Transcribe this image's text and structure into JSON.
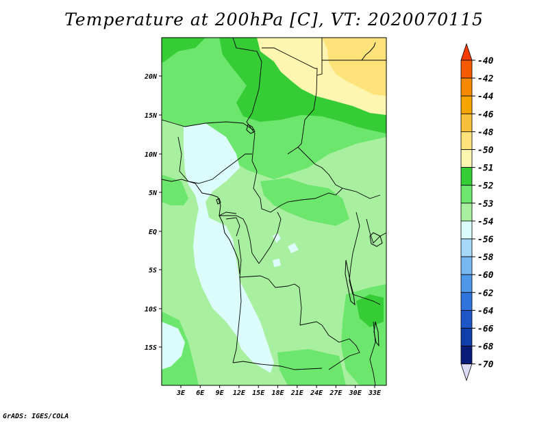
{
  "title": "Temperature at 200hPa [C], VT: 2020070115",
  "credit": "GrADS: IGES/COLA",
  "map": {
    "lat_labels": [
      "20N",
      "15N",
      "10N",
      "5N",
      "EQ",
      "5S",
      "10S",
      "15S"
    ],
    "lon_labels": [
      "3E",
      "6E",
      "9E",
      "12E",
      "15E",
      "18E",
      "21E",
      "24E",
      "27E",
      "30E",
      "33E"
    ]
  },
  "colorbar": {
    "levels": [
      "-40",
      "-42",
      "-44",
      "-46",
      "-48",
      "-50",
      "-51",
      "-52",
      "-53",
      "-54",
      "-56",
      "-58",
      "-60",
      "-62",
      "-64",
      "-66",
      "-68",
      "-70"
    ],
    "colors": [
      "#f53c00",
      "#f55a00",
      "#f58a00",
      "#f5a400",
      "#f7c03a",
      "#fde37a",
      "#fdf5b0",
      "#36cc36",
      "#6ce66c",
      "#a8f0a0",
      "#dcfcfc",
      "#a6d8f8",
      "#78b8f0",
      "#4e98e8",
      "#2e74dc",
      "#1e56c8",
      "#123eaa",
      "#0a1a78",
      "#dcdcf8"
    ]
  },
  "colors": {
    "ocean": "#dcfcfc",
    "band_53": "#a8f0a0",
    "band_52": "#6ce66c",
    "band_51": "#36cc36",
    "band_50": "#fdf5b0",
    "band_48": "#fde37a"
  }
}
